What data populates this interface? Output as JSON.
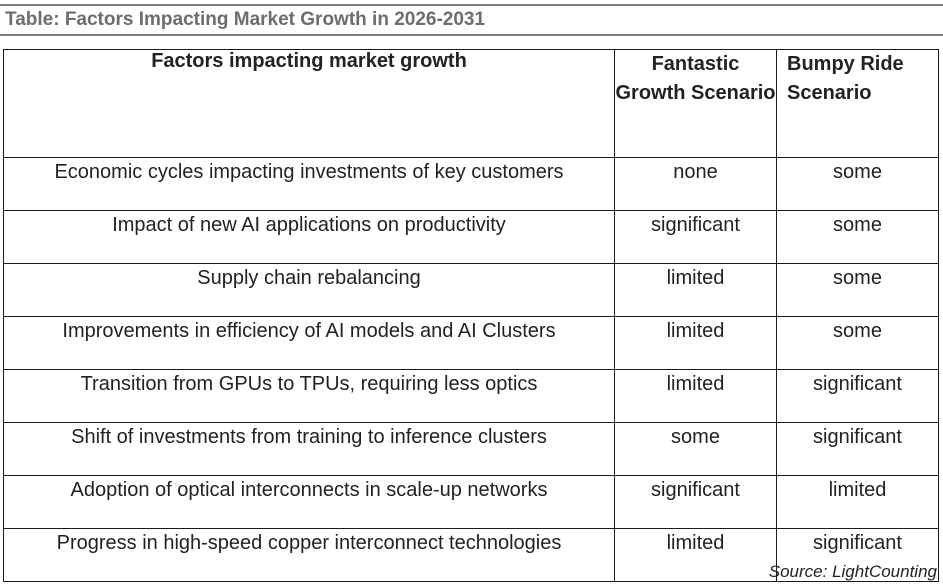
{
  "title": "Table: Factors Impacting Market Growth in 2026-2031",
  "headers": {
    "factor": "Factors impacting market growth",
    "fantastic": "Fantastic Growth Scenario",
    "bumpy": "Bumpy Ride Scenario"
  },
  "rows": [
    {
      "factor": "Economic cycles impacting investments of key customers",
      "fantastic": "none",
      "bumpy": "some"
    },
    {
      "factor": "Impact of new AI applications on productivity",
      "fantastic": "significant",
      "bumpy": "some"
    },
    {
      "factor": "Supply chain rebalancing",
      "fantastic": "limited",
      "bumpy": "some"
    },
    {
      "factor": "Improvements in efficiency of AI models and AI Clusters",
      "fantastic": "limited",
      "bumpy": "some"
    },
    {
      "factor": "Transition from GPUs to TPUs, requiring less optics",
      "fantastic": "limited",
      "bumpy": "significant"
    },
    {
      "factor": "Shift of investments from training to inference clusters",
      "fantastic": "some",
      "bumpy": "significant"
    },
    {
      "factor": "Adoption of optical interconnects in scale-up networks",
      "fantastic": "significant",
      "bumpy": "limited"
    },
    {
      "factor": "Progress in high-speed copper interconnect technologies",
      "fantastic": "limited",
      "bumpy": "significant"
    }
  ],
  "source": "Source: LightCounting"
}
